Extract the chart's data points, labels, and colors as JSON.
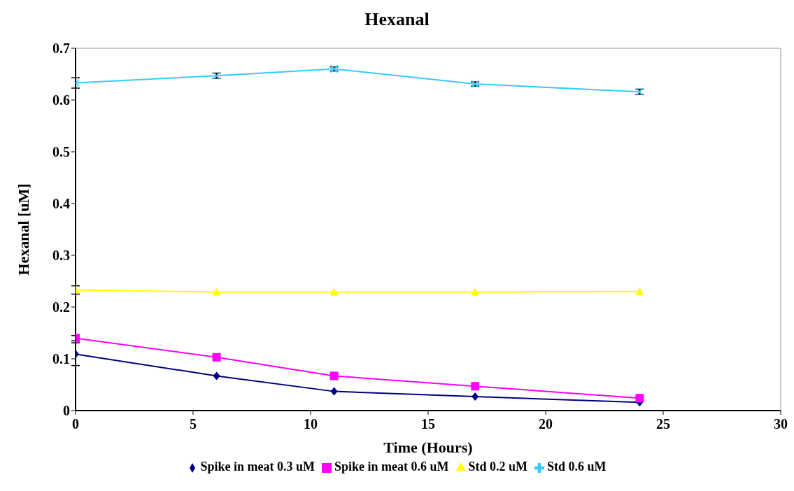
{
  "chart_data": {
    "type": "line",
    "title": "Hexanal",
    "xlabel": "Time (Hours)",
    "ylabel": "Hexanal [uM]",
    "x": [
      0,
      6,
      11,
      17,
      24
    ],
    "series": [
      {
        "name": "Spike in meat 0.3 uM",
        "color": "#000080",
        "marker": "diamond",
        "values": [
          0.109,
          0.067,
          0.037,
          0.027,
          0.016
        ],
        "errors": [
          0.022,
          null,
          null,
          null,
          null
        ]
      },
      {
        "name": "Spike in meat 0.6 uM",
        "color": "#ff00ff",
        "marker": "square",
        "values": [
          0.14,
          0.103,
          0.067,
          0.047,
          0.024
        ],
        "errors": [
          0.005,
          null,
          null,
          null,
          null
        ]
      },
      {
        "name": "Std 0.2 uM",
        "color": "#ffff00",
        "marker": "triangle",
        "values": [
          0.233,
          0.229,
          0.229,
          0.229,
          0.23
        ],
        "errors": [
          0.008,
          null,
          null,
          null,
          null
        ]
      },
      {
        "name": "Std 0.6 uM",
        "color": "#33ccff",
        "marker": "cross",
        "values": [
          0.633,
          0.647,
          0.66,
          0.631,
          0.616
        ],
        "errors": [
          0.01,
          0.005,
          0.004,
          0.004,
          0.005
        ]
      }
    ],
    "xlim": [
      0,
      30
    ],
    "xticks": [
      0,
      5,
      10,
      15,
      20,
      25,
      30
    ],
    "ylim": [
      0,
      0.7
    ],
    "yticks": [
      0,
      0.1,
      0.2,
      0.3,
      0.4,
      0.5,
      0.6,
      0.7
    ],
    "grid": false,
    "legend": "bottom"
  }
}
